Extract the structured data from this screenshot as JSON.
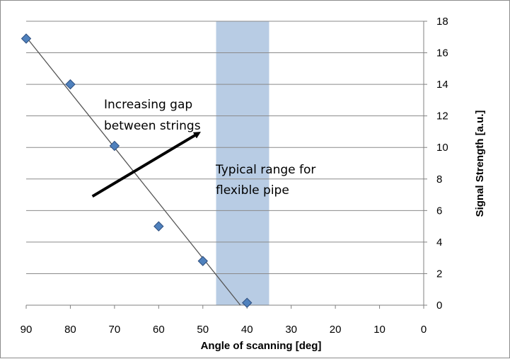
{
  "chart_data": {
    "type": "scatter",
    "title": "",
    "xlabel": "Angle of scanning  [deg]",
    "ylabel": "Signal Strength [a.u.]",
    "xlim": [
      90,
      0
    ],
    "ylim": [
      0,
      18
    ],
    "x_reversed": true,
    "y_axis_position": "right",
    "x_ticks": [
      "90",
      "80",
      "70",
      "60",
      "50",
      "40",
      "30",
      "20",
      "10",
      "0"
    ],
    "y_ticks": [
      "0",
      "2",
      "4",
      "6",
      "8",
      "10",
      "12",
      "14",
      "16",
      "18"
    ],
    "grid": "horizontal",
    "series": [
      {
        "marker": "diamond",
        "color": "#4f81bd",
        "points": [
          {
            "x": 90,
            "y": 16.9
          },
          {
            "x": 80,
            "y": 14.0
          },
          {
            "x": 70,
            "y": 10.1
          },
          {
            "x": 60,
            "y": 5.0
          },
          {
            "x": 50,
            "y": 2.8
          },
          {
            "x": 40,
            "y": 0.15
          }
        ]
      }
    ],
    "trendline": {
      "x0": 90,
      "y0": 17.0,
      "x1": 41.5,
      "y1": 0,
      "color": "#555555"
    },
    "shaded_band": {
      "x_from": 47,
      "x_to": 35,
      "color": "#b8cce4"
    },
    "annotations": [
      {
        "lines": [
          "Increasing gap",
          "between strings"
        ]
      },
      {
        "lines": [
          "Typical range for",
          "flexible pipe"
        ]
      }
    ],
    "arrow": {
      "from": {
        "x": 75,
        "y": 6.9
      },
      "to": {
        "x": 51,
        "y": 10.9
      }
    }
  }
}
